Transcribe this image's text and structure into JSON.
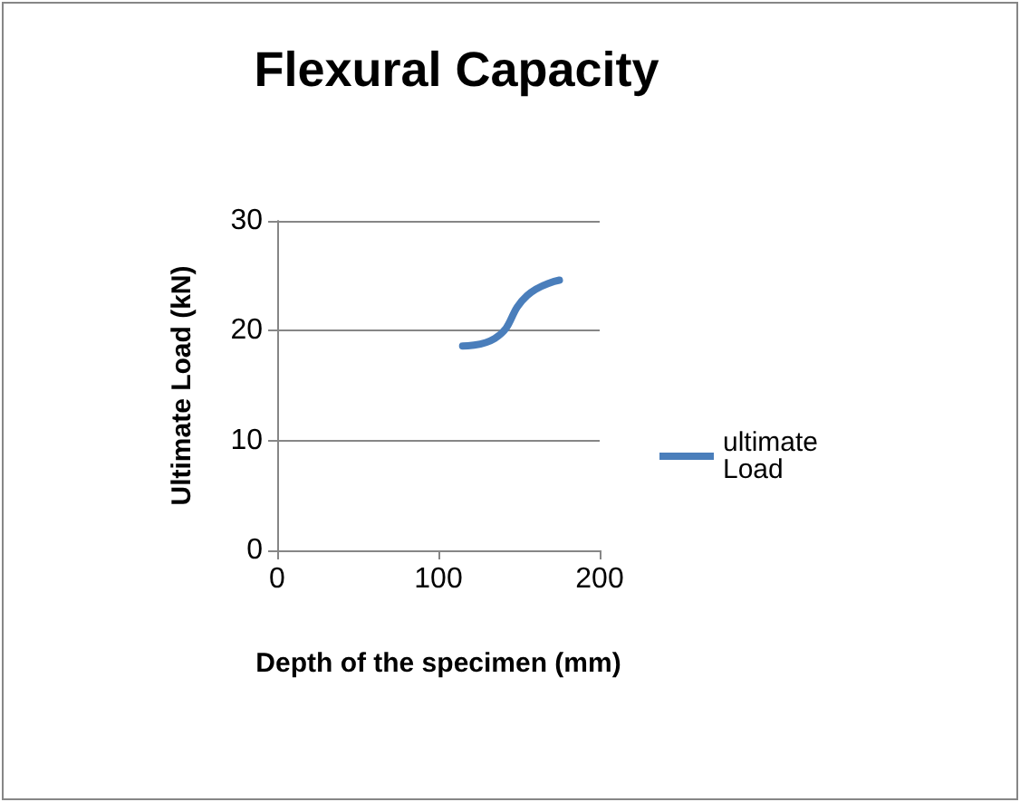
{
  "chart_data": {
    "type": "line",
    "title": "Flexural Capacity",
    "xlabel": "Depth of the specimen (mm)",
    "ylabel": "Ultimate Load (kN)",
    "x": [
      115,
      135,
      155,
      175
    ],
    "series": [
      {
        "name": "ultimate Load",
        "color": "#4a7ebb",
        "values": [
          18.6,
          19.3,
          23.2,
          24.6
        ]
      }
    ],
    "xlim": [
      0,
      200
    ],
    "xticks": [
      0,
      100,
      200
    ],
    "ylim": [
      0,
      30
    ],
    "yticks": [
      0,
      10,
      20,
      30
    ],
    "grid": "y",
    "legend": "right",
    "marker": "none",
    "line_style": "solid"
  }
}
